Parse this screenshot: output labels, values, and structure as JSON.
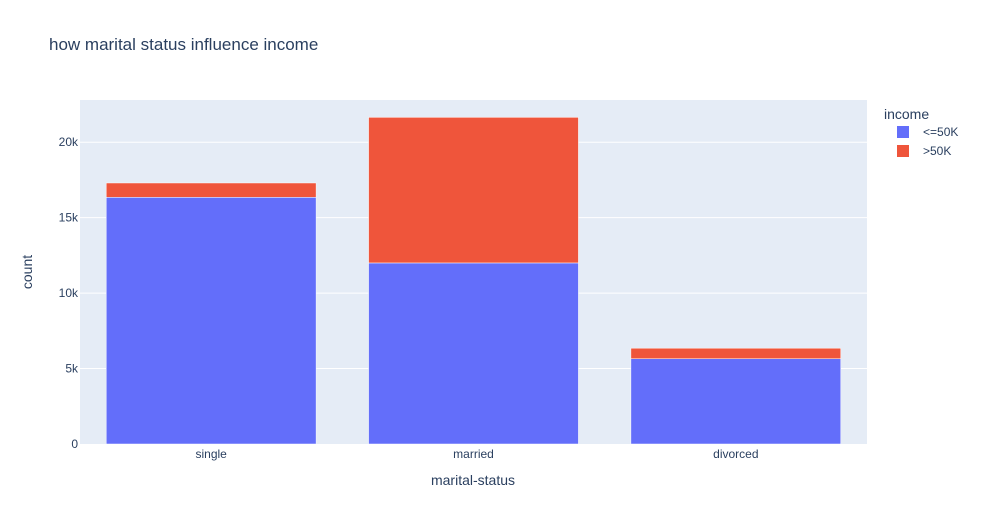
{
  "chart_data": {
    "type": "bar",
    "barmode": "stack",
    "title": "how marital status influence income",
    "xlabel": "marital-status",
    "ylabel": "count",
    "categories": [
      "single",
      "married",
      "divorced"
    ],
    "series": [
      {
        "name": "<=50K",
        "values": [
          16350,
          12000,
          5650
        ],
        "color": "#636efa"
      },
      {
        "name": ">50K",
        "values": [
          950,
          9650,
          700
        ],
        "color": "#ef553b"
      }
    ],
    "ylim": [
      0,
      22800
    ],
    "yticks": [
      0,
      5000,
      10000,
      15000,
      20000
    ],
    "ytick_labels": [
      "0",
      "5k",
      "10k",
      "15k",
      "20k"
    ],
    "legend": {
      "title": "income",
      "placement": "top-right"
    },
    "grid": true,
    "plot_bg": "#e5ecf6"
  }
}
